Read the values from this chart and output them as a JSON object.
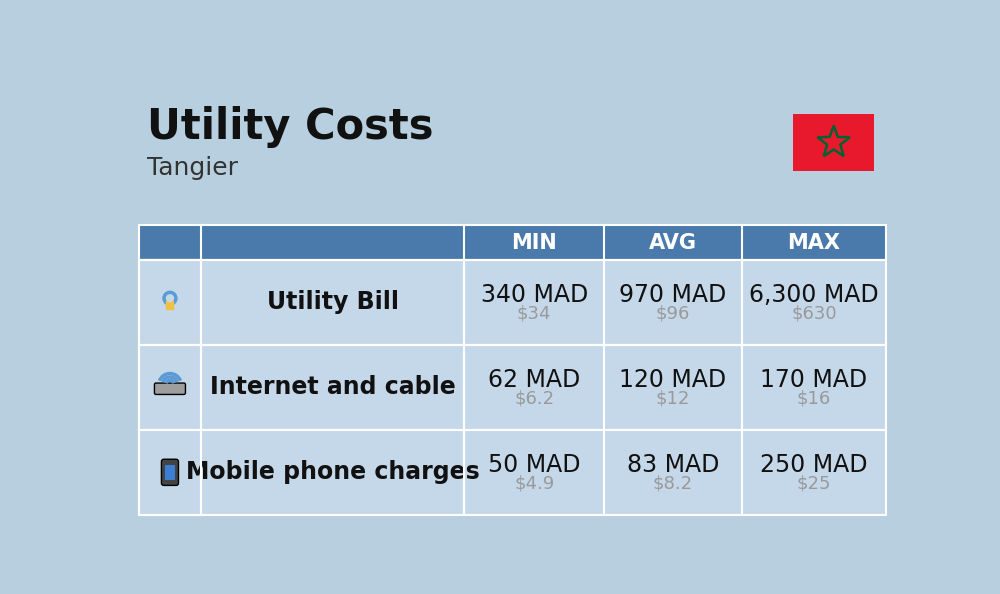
{
  "title": "Utility Costs",
  "subtitle": "Tangier",
  "background_color": "#b8cfe0",
  "header_color": "#4a7aab",
  "header_text_color": "#ffffff",
  "row_color": "#c5d8ea",
  "col_headers": [
    "MIN",
    "AVG",
    "MAX"
  ],
  "rows": [
    {
      "label": "Utility Bill",
      "min_mad": "340 MAD",
      "min_usd": "$34",
      "avg_mad": "970 MAD",
      "avg_usd": "$96",
      "max_mad": "6,300 MAD",
      "max_usd": "$630"
    },
    {
      "label": "Internet and cable",
      "min_mad": "62 MAD",
      "min_usd": "$6.2",
      "avg_mad": "120 MAD",
      "avg_usd": "$12",
      "max_mad": "170 MAD",
      "max_usd": "$16"
    },
    {
      "label": "Mobile phone charges",
      "min_mad": "50 MAD",
      "min_usd": "$4.9",
      "avg_mad": "83 MAD",
      "avg_usd": "$8.2",
      "max_mad": "250 MAD",
      "max_usd": "$25"
    }
  ],
  "flag_bg": "#e8192c",
  "flag_star_color": "#006233",
  "mad_fontsize": 17,
  "usd_fontsize": 13,
  "usd_color": "#999999",
  "label_fontsize": 17,
  "header_fontsize": 15,
  "title_fontsize": 30,
  "subtitle_fontsize": 18
}
